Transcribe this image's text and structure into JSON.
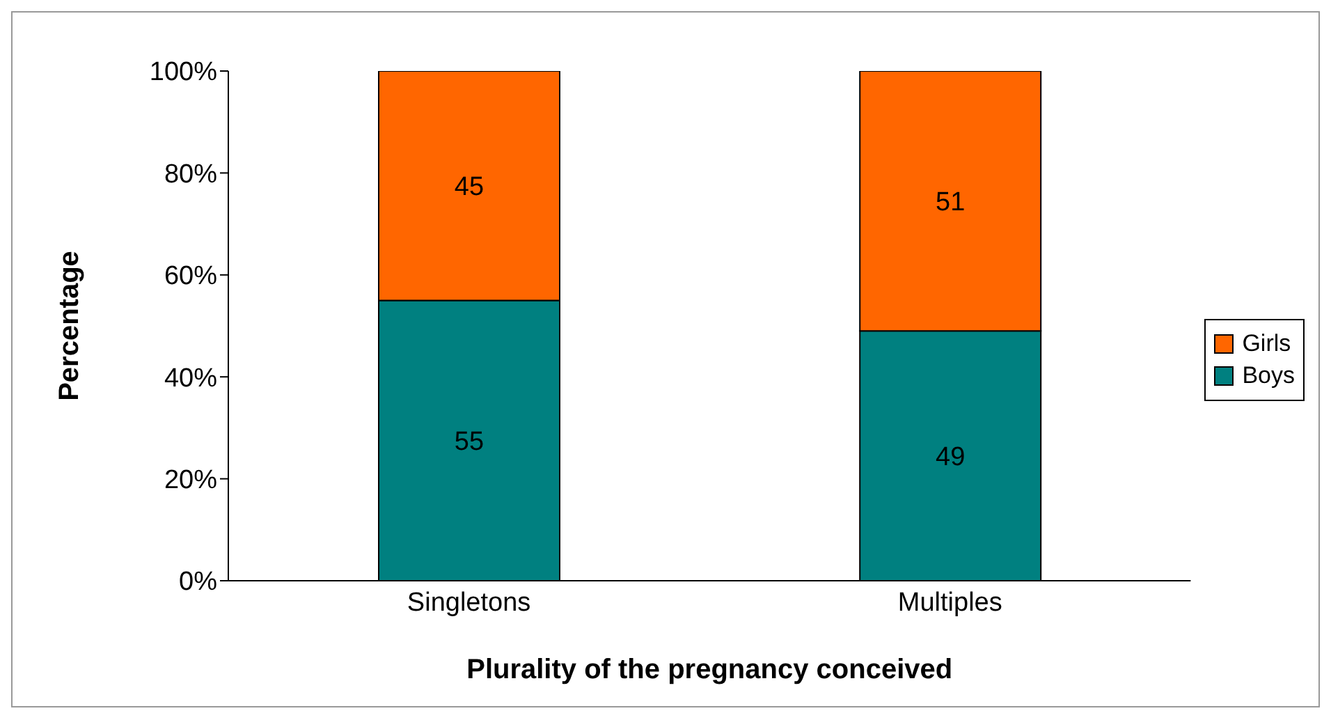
{
  "chart_data": {
    "type": "bar",
    "stacked": true,
    "xlabel": "Plurality of the pregnancy conceived",
    "ylabel": "Percentage",
    "categories": [
      "Singletons",
      "Multiples"
    ],
    "series": [
      {
        "name": "Boys",
        "color": "#008080",
        "values": [
          55,
          49
        ]
      },
      {
        "name": "Girls",
        "color": "#ff6600",
        "values": [
          45,
          51
        ]
      }
    ],
    "ylim": [
      0,
      100
    ],
    "yticks": [
      {
        "value": 0,
        "label": "0%"
      },
      {
        "value": 20,
        "label": "20%"
      },
      {
        "value": 40,
        "label": "40%"
      },
      {
        "value": 60,
        "label": "60%"
      },
      {
        "value": 80,
        "label": "80%"
      },
      {
        "value": 100,
        "label": "100%"
      }
    ],
    "data_labels": true,
    "legend": "right",
    "grid": false
  }
}
